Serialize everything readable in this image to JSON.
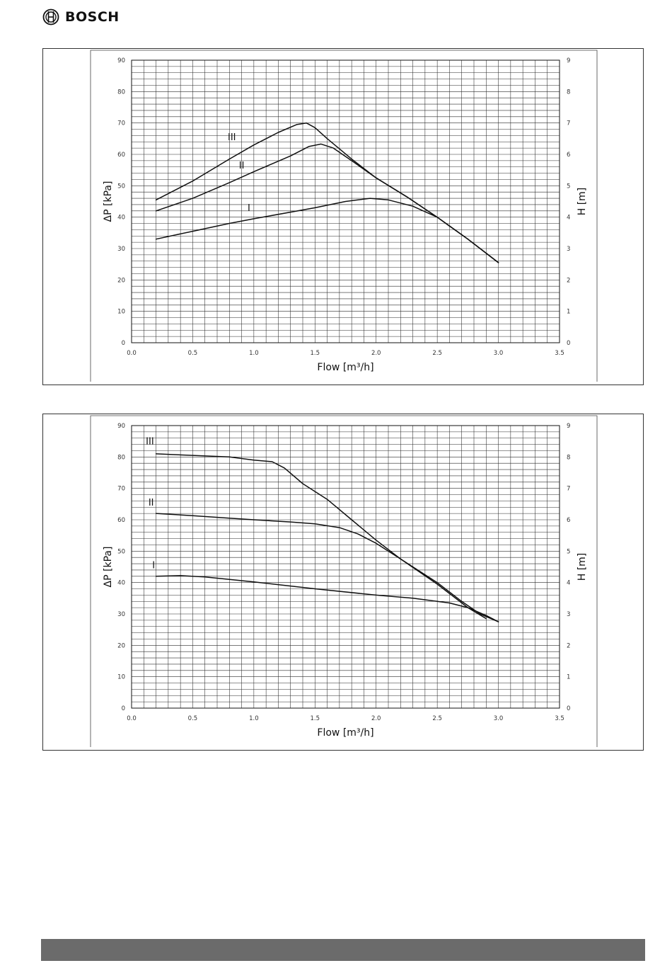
{
  "brand": {
    "name": "BOSCH",
    "logo_icon": "bosch-armature-icon"
  },
  "chart_data": [
    {
      "type": "line",
      "title": "",
      "xlabel": "Flow [m³/h]",
      "ylabel": "ΔP [kPa]",
      "ylabel_right": "H [m]",
      "xlim": [
        0,
        3.5
      ],
      "ylim": [
        0,
        90
      ],
      "ylim_right": [
        0,
        9
      ],
      "x_ticks": [
        "0.0",
        "0.5",
        "1.0",
        "1.5",
        "2.0",
        "2.5",
        "3.0",
        "3.5"
      ],
      "y_ticks": [
        "0",
        "10",
        "20",
        "30",
        "40",
        "50",
        "60",
        "70",
        "80",
        "90"
      ],
      "y_ticks_right": [
        "0",
        "1",
        "2",
        "3",
        "4",
        "5",
        "6",
        "7",
        "8",
        "9"
      ],
      "grid": true,
      "series": [
        {
          "name": "III",
          "points": [
            [
              0.2,
              45.5
            ],
            [
              0.5,
              51.5
            ],
            [
              0.8,
              58.5
            ],
            [
              1.0,
              63.0
            ],
            [
              1.2,
              67.0
            ],
            [
              1.35,
              69.5
            ],
            [
              1.43,
              70.0
            ],
            [
              1.5,
              68.5
            ],
            [
              1.6,
              65.0
            ],
            [
              1.8,
              58.5
            ],
            [
              2.0,
              52.5
            ],
            [
              2.25,
              46.5
            ],
            [
              2.5,
              40.0
            ],
            [
              2.75,
              33.0
            ],
            [
              3.0,
              25.5
            ]
          ]
        },
        {
          "name": "II",
          "points": [
            [
              0.2,
              42.0
            ],
            [
              0.5,
              46.0
            ],
            [
              0.8,
              51.0
            ],
            [
              1.0,
              54.5
            ],
            [
              1.3,
              59.5
            ],
            [
              1.45,
              62.5
            ],
            [
              1.55,
              63.3
            ],
            [
              1.65,
              62.0
            ],
            [
              1.8,
              58.0
            ],
            [
              2.0,
              52.5
            ],
            [
              2.25,
              46.5
            ],
            [
              2.5,
              40.0
            ],
            [
              2.75,
              33.0
            ],
            [
              3.0,
              25.5
            ]
          ]
        },
        {
          "name": "I",
          "points": [
            [
              0.2,
              33.0
            ],
            [
              0.5,
              35.5
            ],
            [
              0.8,
              38.0
            ],
            [
              1.0,
              39.5
            ],
            [
              1.5,
              43.0
            ],
            [
              1.75,
              45.0
            ],
            [
              1.95,
              46.0
            ],
            [
              2.1,
              45.5
            ],
            [
              2.3,
              43.5
            ],
            [
              2.5,
              40.0
            ],
            [
              2.75,
              33.0
            ],
            [
              3.0,
              25.5
            ]
          ]
        }
      ],
      "curve_labels": [
        {
          "text": "III",
          "x": 0.82,
          "y": 64.5
        },
        {
          "text": "II",
          "x": 0.9,
          "y": 55.5
        },
        {
          "text": "I",
          "x": 0.96,
          "y": 42.0
        }
      ]
    },
    {
      "type": "line",
      "title": "",
      "xlabel": "Flow [m³/h]",
      "ylabel": "ΔP [kPa]",
      "ylabel_right": "H [m]",
      "xlim": [
        0,
        3.5
      ],
      "ylim": [
        0,
        90
      ],
      "ylim_right": [
        0,
        9
      ],
      "x_ticks": [
        "0.0",
        "0.5",
        "1.0",
        "1.5",
        "2.0",
        "2.5",
        "3.0",
        "3.5"
      ],
      "y_ticks": [
        "0",
        "10",
        "20",
        "30",
        "40",
        "50",
        "60",
        "70",
        "80",
        "90"
      ],
      "y_ticks_right": [
        "0",
        "1",
        "2",
        "3",
        "4",
        "5",
        "6",
        "7",
        "8",
        "9"
      ],
      "grid": true,
      "series": [
        {
          "name": "III",
          "points": [
            [
              0.2,
              81.0
            ],
            [
              0.5,
              80.5
            ],
            [
              0.8,
              80.0
            ],
            [
              1.0,
              79.0
            ],
            [
              1.15,
              78.5
            ],
            [
              1.25,
              76.5
            ],
            [
              1.4,
              71.5
            ],
            [
              1.6,
              66.5
            ],
            [
              1.8,
              60.0
            ],
            [
              2.0,
              53.5
            ],
            [
              2.2,
              47.5
            ],
            [
              2.5,
              39.5
            ],
            [
              2.75,
              32.0
            ],
            [
              2.9,
              28.5
            ]
          ]
        },
        {
          "name": "II",
          "points": [
            [
              0.2,
              62.0
            ],
            [
              0.5,
              61.3
            ],
            [
              0.8,
              60.5
            ],
            [
              1.0,
              60.0
            ],
            [
              1.3,
              59.3
            ],
            [
              1.5,
              58.7
            ],
            [
              1.7,
              57.5
            ],
            [
              1.85,
              55.5
            ],
            [
              2.0,
              52.5
            ],
            [
              2.2,
              47.5
            ],
            [
              2.5,
              40.0
            ],
            [
              2.7,
              34.0
            ],
            [
              2.85,
              30.0
            ],
            [
              3.0,
              27.5
            ]
          ]
        },
        {
          "name": "I",
          "points": [
            [
              0.2,
              42.0
            ],
            [
              0.4,
              42.2
            ],
            [
              0.6,
              41.8
            ],
            [
              1.0,
              40.2
            ],
            [
              1.5,
              38.0
            ],
            [
              2.0,
              36.0
            ],
            [
              2.3,
              35.0
            ],
            [
              2.6,
              33.5
            ],
            [
              2.75,
              32.0
            ],
            [
              2.9,
              29.5
            ],
            [
              3.0,
              27.5
            ]
          ]
        }
      ],
      "curve_labels": [
        {
          "text": "III",
          "x": 0.15,
          "y": 84.0
        },
        {
          "text": "II",
          "x": 0.16,
          "y": 64.5
        },
        {
          "text": "I",
          "x": 0.18,
          "y": 44.5
        }
      ]
    }
  ]
}
